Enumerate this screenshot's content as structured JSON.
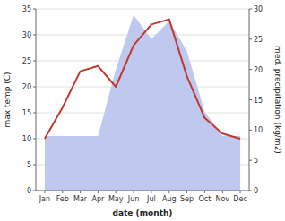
{
  "chart_data": {
    "type": "line",
    "categories": [
      "Jan",
      "Feb",
      "Mar",
      "Apr",
      "May",
      "Jun",
      "Jul",
      "Aug",
      "Sep",
      "Oct",
      "Nov",
      "Dec"
    ],
    "xlabel": "date (month)",
    "ylabel": "max temp (C)",
    "y2label": "med. precipitation (kg/m2)",
    "series": [
      {
        "type": "area",
        "axis": "y2",
        "color": "#bfc9f0",
        "values": [
          9,
          9,
          9,
          9,
          20,
          29,
          25,
          28,
          23,
          13,
          9,
          9
        ]
      },
      {
        "type": "line",
        "color": "#c0392b",
        "values": [
          10,
          16,
          23,
          24,
          20,
          28,
          32,
          33,
          22,
          14,
          11,
          10
        ]
      }
    ],
    "ylim": [
      0,
      35
    ],
    "yticks": [
      0,
      5,
      10,
      15,
      20,
      25,
      30,
      35
    ],
    "y2lim": [
      0,
      30
    ],
    "y2ticks": [
      0,
      5,
      10,
      15,
      20,
      25,
      30
    ],
    "grid": true
  }
}
